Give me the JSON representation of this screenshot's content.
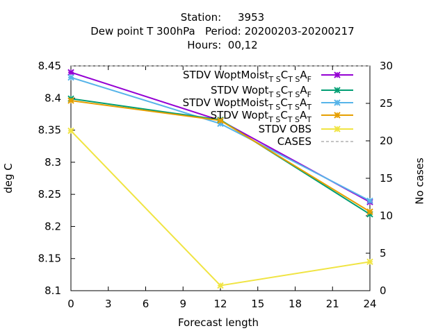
{
  "title_lines": [
    "Station:     3953",
    "Dew point T 300hPa   Period: 20200203-20200217",
    "Hours:  00,12"
  ],
  "chart_data": {
    "type": "line",
    "xlabel": "Forecast length",
    "ylabel": "deg C",
    "y2label": "No cases",
    "xlim": [
      0,
      24
    ],
    "ylim": [
      8.1,
      8.45
    ],
    "y2lim": [
      0,
      30
    ],
    "xticks": [
      0,
      3,
      6,
      9,
      12,
      15,
      18,
      21,
      24
    ],
    "yticks": [
      8.1,
      8.15,
      8.2,
      8.25,
      8.3,
      8.35,
      8.4,
      8.45
    ],
    "y2ticks": [
      0,
      5,
      10,
      15,
      20,
      25,
      30
    ],
    "legend_position": "top-right",
    "grid": false,
    "x": [
      0,
      12,
      24
    ],
    "series": [
      {
        "name": "STDV WoptMoist",
        "sub1": "T S",
        "mid1": "C",
        "sub2": "T S",
        "mid2": "A",
        "sub3": "F",
        "color": "#9400d3",
        "marker": "x",
        "axis": "y",
        "values": [
          8.44,
          8.365,
          8.238
        ]
      },
      {
        "name": "STDV Wopt",
        "sub1": "T S",
        "mid1": "C",
        "sub2": "T S",
        "mid2": "A",
        "sub3": "F",
        "color": "#009e73",
        "marker": "x",
        "axis": "y",
        "values": [
          8.399,
          8.366,
          8.219
        ]
      },
      {
        "name": "STDV WoptMoist",
        "sub1": "T S",
        "mid1": "C",
        "sub2": "T S",
        "mid2": "A",
        "sub3": "T",
        "color": "#56b4e9",
        "marker": "x",
        "axis": "y",
        "values": [
          8.432,
          8.36,
          8.24
        ]
      },
      {
        "name": "STDV Wopt",
        "sub1": "T S",
        "mid1": "C",
        "sub2": "T S",
        "mid2": "A",
        "sub3": "T",
        "color": "#e69f00",
        "marker": "x",
        "axis": "y",
        "values": [
          8.396,
          8.365,
          8.223
        ]
      },
      {
        "name": "STDV OBS",
        "color": "#f0e442",
        "marker": "x",
        "axis": "y",
        "values": [
          8.349,
          8.108,
          8.145
        ]
      },
      {
        "name": "CASES",
        "color": "#a0a0a0",
        "dash": "4,3",
        "marker": "none",
        "axis": "y2",
        "values": [
          30,
          30,
          30
        ]
      }
    ]
  }
}
